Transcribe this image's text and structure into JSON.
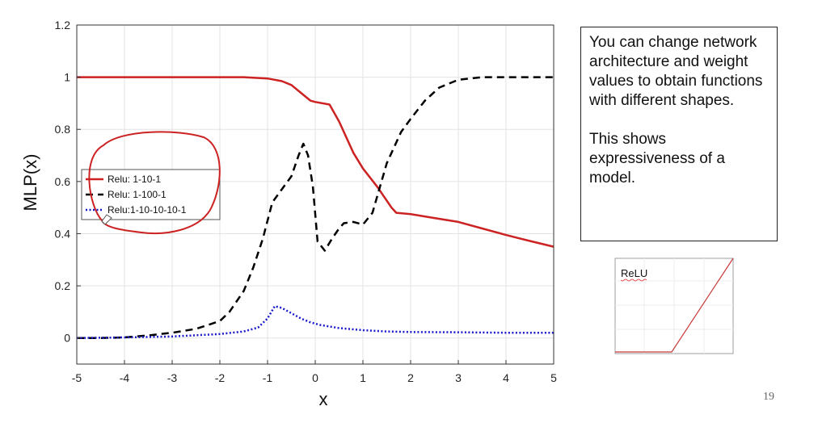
{
  "chart_data": {
    "type": "line",
    "xlabel": "x",
    "ylabel": "MLP(x)",
    "xlim": [
      -5,
      5
    ],
    "ylim": [
      -0.1,
      1.2
    ],
    "xticks": [
      -5,
      -4,
      -3,
      -2,
      -1,
      0,
      1,
      2,
      3,
      4,
      5
    ],
    "yticks": [
      0,
      0.2,
      0.4,
      0.6,
      0.8,
      1,
      1.2
    ],
    "xtick_labels": [
      "-5",
      "-4",
      "-3",
      "-2",
      "-1",
      "0",
      "1",
      "2",
      "3",
      "4",
      "5"
    ],
    "ytick_labels": [
      "0",
      "0.2",
      "0.4",
      "0.6",
      "0.8",
      "1",
      "1.2"
    ],
    "grid": true,
    "legend_position": "left",
    "series": [
      {
        "name": "Relu: 1-10-1",
        "color": "#cc2222",
        "style": "solid",
        "x": [
          -5,
          -4,
          -3,
          -2,
          -1.5,
          -1,
          -0.7,
          -0.5,
          -0.3,
          -0.1,
          0.0,
          0.3,
          0.5,
          0.8,
          1.0,
          1.3,
          1.6,
          1.7,
          2.0,
          2.5,
          3.0,
          3.5,
          4.0,
          4.5,
          5.0
        ],
        "y": [
          1.0,
          1.0,
          1.0,
          1.0,
          1.0,
          0.995,
          0.985,
          0.97,
          0.94,
          0.91,
          0.905,
          0.895,
          0.83,
          0.71,
          0.65,
          0.58,
          0.5,
          0.48,
          0.475,
          0.46,
          0.445,
          0.42,
          0.395,
          0.372,
          0.35
        ]
      },
      {
        "name": "Relu: 1-100-1",
        "color": "#000000",
        "style": "dashed",
        "x": [
          -5,
          -4.5,
          -4,
          -3.5,
          -3,
          -2.5,
          -2,
          -1.8,
          -1.5,
          -1.3,
          -1.1,
          -0.9,
          -0.7,
          -0.5,
          -0.35,
          -0.25,
          -0.15,
          -0.05,
          0.05,
          0.2,
          0.35,
          0.5,
          0.6,
          0.8,
          1.0,
          1.2,
          1.5,
          1.8,
          2.0,
          2.3,
          2.6,
          3.0,
          3.5,
          4.0,
          4.5,
          5.0
        ],
        "y": [
          0.0,
          0.0,
          0.002,
          0.01,
          0.02,
          0.035,
          0.065,
          0.1,
          0.18,
          0.27,
          0.38,
          0.52,
          0.57,
          0.62,
          0.7,
          0.745,
          0.7,
          0.58,
          0.37,
          0.335,
          0.38,
          0.42,
          0.44,
          0.445,
          0.435,
          0.48,
          0.67,
          0.79,
          0.84,
          0.91,
          0.96,
          0.99,
          1.0,
          1.0,
          1.0,
          1.0
        ]
      },
      {
        "name": "Relu:1-10-10-10-1",
        "color": "#1a1acc",
        "style": "dotted",
        "x": [
          -5,
          -4,
          -3,
          -2,
          -1.5,
          -1.2,
          -1.0,
          -0.85,
          -0.7,
          -0.5,
          -0.3,
          -0.1,
          0.1,
          0.5,
          1.0,
          1.5,
          2.0,
          3.0,
          4.0,
          5.0
        ],
        "y": [
          0.0,
          0.002,
          0.006,
          0.015,
          0.025,
          0.04,
          0.075,
          0.122,
          0.115,
          0.095,
          0.075,
          0.06,
          0.05,
          0.038,
          0.03,
          0.025,
          0.023,
          0.022,
          0.02,
          0.02
        ]
      }
    ]
  },
  "note": {
    "paragraph1": "You can change network architecture and weight values to obtain functions with different shapes.",
    "paragraph2": "This shows expressiveness of a model."
  },
  "relu_thumbnail": {
    "label": "ReLU",
    "label_color": "#111111",
    "line_color": "#c83a3a"
  },
  "slide_number": "19"
}
